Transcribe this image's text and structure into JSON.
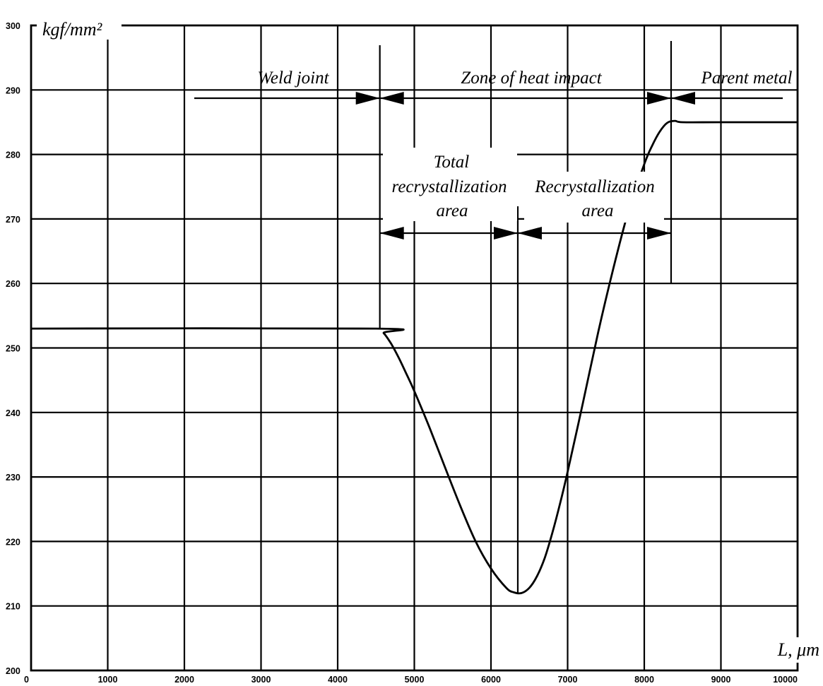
{
  "chart_data": {
    "type": "line",
    "title": "",
    "xlabel": "L, μm",
    "ylabel": "kgf/mm²",
    "xlim": [
      0,
      10000
    ],
    "ylim": [
      200,
      300
    ],
    "xticks": [
      0,
      1000,
      2000,
      3000,
      4000,
      5000,
      6000,
      7000,
      8000,
      9000,
      10000
    ],
    "yticks": [
      200,
      210,
      220,
      230,
      240,
      250,
      260,
      270,
      280,
      290,
      300
    ],
    "grid": true,
    "series": [
      {
        "x": [
          0,
          4500,
          4600,
          4700,
          4800,
          4900,
          5000,
          5200,
          5400,
          5600,
          5800,
          6000,
          6200,
          6300,
          6400,
          6500,
          6600,
          6700,
          6800,
          6900,
          7000,
          7200,
          7400,
          7600,
          7800,
          8000,
          8100,
          8200,
          8300,
          8400,
          8500,
          9000,
          10000
        ],
        "y": [
          253,
          253,
          252.3,
          250.6,
          248.4,
          245.9,
          243.3,
          237.6,
          231.5,
          225.5,
          220.0,
          215.8,
          212.8,
          212.1,
          212.0,
          212.8,
          214.6,
          217.4,
          221.3,
          225.8,
          230.8,
          241.5,
          252.5,
          262.5,
          271.5,
          278.5,
          281.3,
          283.5,
          284.9,
          285.2,
          285.0,
          285,
          285
        ]
      }
    ],
    "annotations": {
      "weld_joint": "Weld joint",
      "zone_heat": "Zone of heat impact",
      "parent_metal": "Parent metal",
      "total_line1": "Total",
      "total_line2": "recrystallization",
      "total_line3": "area",
      "recryst_line1": "Recrystallization",
      "recryst_line2": "area"
    },
    "markers": {
      "weld_boundary_x": 4550,
      "minimum_x": 6350,
      "parent_boundary_x": 8350
    }
  }
}
